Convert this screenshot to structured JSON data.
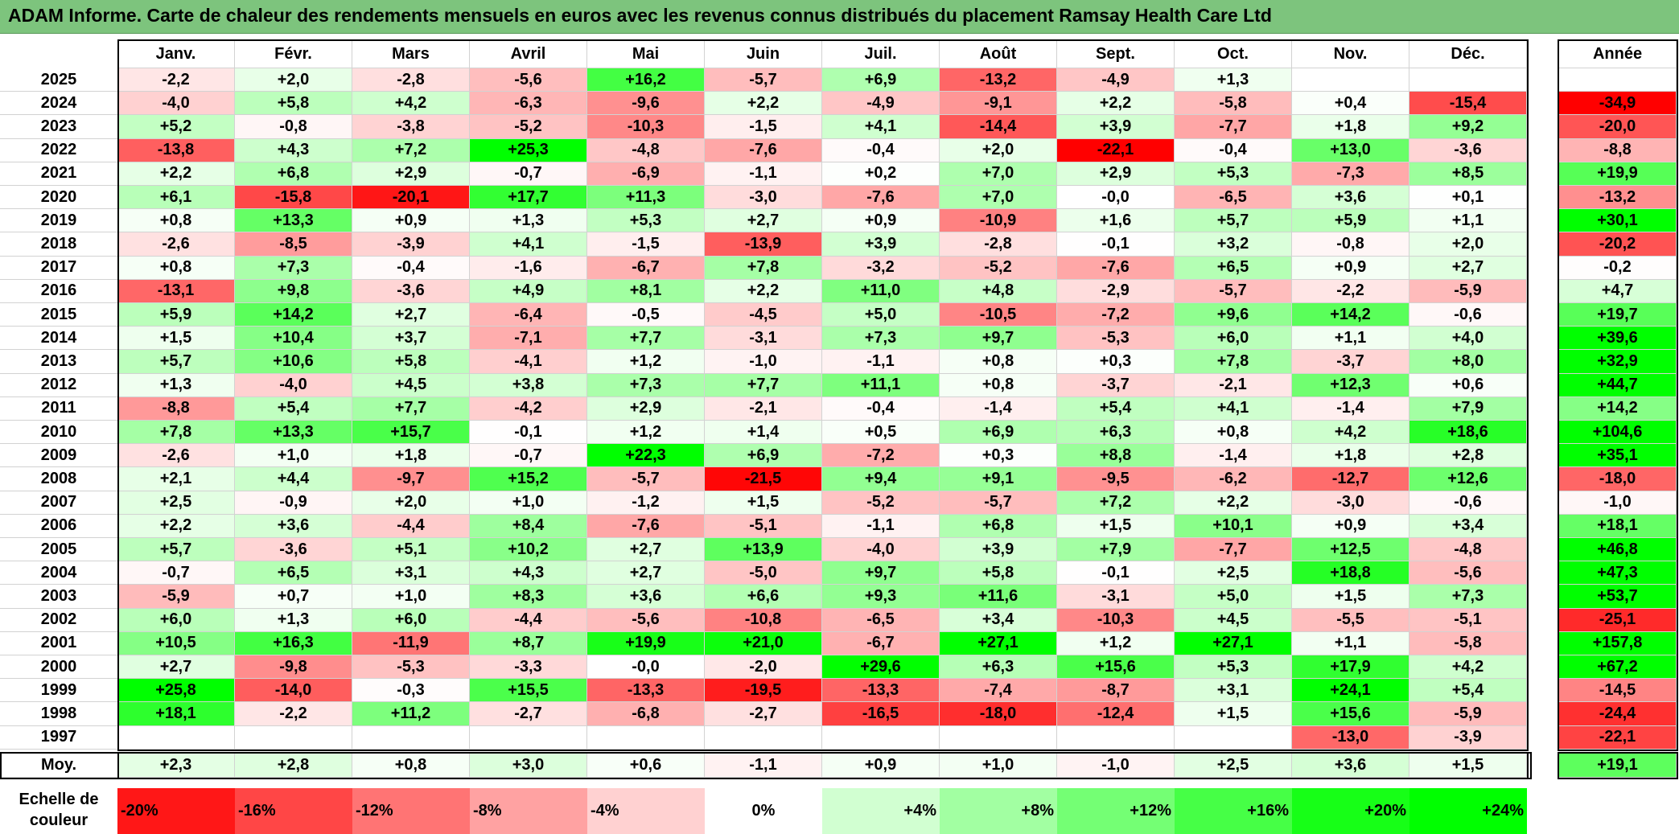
{
  "title": "ADAM Informe. Carte de chaleur des rendements mensuels en euros avec les revenus connus distribués du placement Ramsay Health Care Ltd",
  "colors": {
    "title_bg": "#7dc47d",
    "neg_max": "#ff0000",
    "pos_max": "#00ff00",
    "zero": "#ffffff"
  },
  "chart_data": {
    "type": "heatmap",
    "title": "ADAM Informe. Carte de chaleur des rendements mensuels en euros avec les revenus connus distribués du placement Ramsay Health Care Ltd",
    "months": [
      "Janv.",
      "Févr.",
      "Mars",
      "Avril",
      "Mai",
      "Juin",
      "Juil.",
      "Août",
      "Sept.",
      "Oct.",
      "Nov.",
      "Déc."
    ],
    "year_header": "Année",
    "rows": [
      {
        "year": "2025",
        "values": [
          "-2,2",
          "+2,0",
          "-2,8",
          "-5,6",
          "+16,2",
          "-5,7",
          "+6,9",
          "-13,2",
          "-4,9",
          "+1,3",
          "",
          ""
        ],
        "annual": ""
      },
      {
        "year": "2024",
        "values": [
          "-4,0",
          "+5,8",
          "+4,2",
          "-6,3",
          "-9,6",
          "+2,2",
          "-4,9",
          "-9,1",
          "+2,2",
          "-5,8",
          "+0,4",
          "-15,4"
        ],
        "annual": "-34,9"
      },
      {
        "year": "2023",
        "values": [
          "+5,2",
          "-0,8",
          "-3,8",
          "-5,2",
          "-10,3",
          "-1,5",
          "+4,1",
          "-14,4",
          "+3,9",
          "-7,7",
          "+1,8",
          "+9,2"
        ],
        "annual": "-20,0"
      },
      {
        "year": "2022",
        "values": [
          "-13,8",
          "+4,3",
          "+7,2",
          "+25,3",
          "-4,8",
          "-7,6",
          "-0,4",
          "+2,0",
          "-22,1",
          "-0,4",
          "+13,0",
          "-3,6"
        ],
        "annual": "-8,8"
      },
      {
        "year": "2021",
        "values": [
          "+2,2",
          "+6,8",
          "+2,9",
          "-0,7",
          "-6,9",
          "-1,1",
          "+0,2",
          "+7,0",
          "+2,9",
          "+5,3",
          "-7,3",
          "+8,5"
        ],
        "annual": "+19,9"
      },
      {
        "year": "2020",
        "values": [
          "+6,1",
          "-15,8",
          "-20,1",
          "+17,7",
          "+11,3",
          "-3,0",
          "-7,6",
          "+7,0",
          "-0,0",
          "-6,5",
          "+3,6",
          "+0,1"
        ],
        "annual": "-13,2"
      },
      {
        "year": "2019",
        "values": [
          "+0,8",
          "+13,3",
          "+0,9",
          "+1,3",
          "+5,3",
          "+2,7",
          "+0,9",
          "-10,9",
          "+1,6",
          "+5,7",
          "+5,9",
          "+1,1"
        ],
        "annual": "+30,1"
      },
      {
        "year": "2018",
        "values": [
          "-2,6",
          "-8,5",
          "-3,9",
          "+4,1",
          "-1,5",
          "-13,9",
          "+3,9",
          "-2,8",
          "-0,1",
          "+3,2",
          "-0,8",
          "+2,0"
        ],
        "annual": "-20,2"
      },
      {
        "year": "2017",
        "values": [
          "+0,8",
          "+7,3",
          "-0,4",
          "-1,6",
          "-6,7",
          "+7,8",
          "-3,2",
          "-5,2",
          "-7,6",
          "+6,5",
          "+0,9",
          "+2,7"
        ],
        "annual": "-0,2"
      },
      {
        "year": "2016",
        "values": [
          "-13,1",
          "+9,8",
          "-3,6",
          "+4,9",
          "+8,1",
          "+2,2",
          "+11,0",
          "+4,8",
          "-2,9",
          "-5,7",
          "-2,2",
          "-5,9"
        ],
        "annual": "+4,7"
      },
      {
        "year": "2015",
        "values": [
          "+5,9",
          "+14,2",
          "+2,7",
          "-6,4",
          "-0,5",
          "-4,5",
          "+5,0",
          "-10,5",
          "-7,2",
          "+9,6",
          "+14,2",
          "-0,6"
        ],
        "annual": "+19,7"
      },
      {
        "year": "2014",
        "values": [
          "+1,5",
          "+10,4",
          "+3,7",
          "-7,1",
          "+7,7",
          "-3,1",
          "+7,3",
          "+9,7",
          "-5,3",
          "+6,0",
          "+1,1",
          "+4,0"
        ],
        "annual": "+39,6"
      },
      {
        "year": "2013",
        "values": [
          "+5,7",
          "+10,6",
          "+5,8",
          "-4,1",
          "+1,2",
          "-1,0",
          "-1,1",
          "+0,8",
          "+0,3",
          "+7,8",
          "-3,7",
          "+8,0"
        ],
        "annual": "+32,9"
      },
      {
        "year": "2012",
        "values": [
          "+1,3",
          "-4,0",
          "+4,5",
          "+3,8",
          "+7,3",
          "+7,7",
          "+11,1",
          "+0,8",
          "-3,7",
          "-2,1",
          "+12,3",
          "+0,6"
        ],
        "annual": "+44,7"
      },
      {
        "year": "2011",
        "values": [
          "-8,8",
          "+5,4",
          "+7,7",
          "-4,2",
          "+2,9",
          "-2,1",
          "-0,4",
          "-1,4",
          "+5,4",
          "+4,1",
          "-1,4",
          "+7,9"
        ],
        "annual": "+14,2"
      },
      {
        "year": "2010",
        "values": [
          "+7,8",
          "+13,3",
          "+15,7",
          "-0,1",
          "+1,2",
          "+1,4",
          "+0,5",
          "+6,9",
          "+6,3",
          "+0,8",
          "+4,2",
          "+18,6"
        ],
        "annual": "+104,6"
      },
      {
        "year": "2009",
        "values": [
          "-2,6",
          "+1,0",
          "+1,8",
          "-0,7",
          "+22,3",
          "+6,9",
          "-7,2",
          "+0,3",
          "+8,8",
          "-1,4",
          "+1,8",
          "+2,8"
        ],
        "annual": "+35,1"
      },
      {
        "year": "2008",
        "values": [
          "+2,1",
          "+4,4",
          "-9,7",
          "+15,2",
          "-5,7",
          "-21,5",
          "+9,4",
          "+9,1",
          "-9,5",
          "-6,2",
          "-12,7",
          "+12,6"
        ],
        "annual": "-18,0"
      },
      {
        "year": "2007",
        "values": [
          "+2,5",
          "-0,9",
          "+2,0",
          "+1,0",
          "-1,2",
          "+1,5",
          "-5,2",
          "-5,7",
          "+7,2",
          "+2,2",
          "-3,0",
          "-0,6"
        ],
        "annual": "-1,0"
      },
      {
        "year": "2006",
        "values": [
          "+2,2",
          "+3,6",
          "-4,4",
          "+8,4",
          "-7,6",
          "-5,1",
          "-1,1",
          "+6,8",
          "+1,5",
          "+10,1",
          "+0,9",
          "+3,4"
        ],
        "annual": "+18,1"
      },
      {
        "year": "2005",
        "values": [
          "+5,7",
          "-3,6",
          "+5,1",
          "+10,2",
          "+2,7",
          "+13,9",
          "-4,0",
          "+3,9",
          "+7,9",
          "-7,7",
          "+12,5",
          "-4,8"
        ],
        "annual": "+46,8"
      },
      {
        "year": "2004",
        "values": [
          "-0,7",
          "+6,5",
          "+3,1",
          "+4,3",
          "+2,7",
          "-5,0",
          "+9,7",
          "+5,8",
          "-0,1",
          "+2,5",
          "+18,8",
          "-5,6"
        ],
        "annual": "+47,3"
      },
      {
        "year": "2003",
        "values": [
          "-5,9",
          "+0,7",
          "+1,0",
          "+8,3",
          "+3,6",
          "+6,6",
          "+9,3",
          "+11,6",
          "-3,1",
          "+5,0",
          "+1,5",
          "+7,3"
        ],
        "annual": "+53,7"
      },
      {
        "year": "2002",
        "values": [
          "+6,0",
          "+1,3",
          "+6,0",
          "-4,4",
          "-5,6",
          "-10,8",
          "-6,5",
          "+3,4",
          "-10,3",
          "+4,5",
          "-5,5",
          "-5,1"
        ],
        "annual": "-25,1"
      },
      {
        "year": "2001",
        "values": [
          "+10,5",
          "+16,3",
          "-11,9",
          "+8,7",
          "+19,9",
          "+21,0",
          "-6,7",
          "+27,1",
          "+1,2",
          "+27,1",
          "+1,1",
          "-5,8"
        ],
        "annual": "+157,8"
      },
      {
        "year": "2000",
        "values": [
          "+2,7",
          "-9,8",
          "-5,3",
          "-3,3",
          "-0,0",
          "-2,0",
          "+29,6",
          "+6,3",
          "+15,6",
          "+5,3",
          "+17,9",
          "+4,2"
        ],
        "annual": "+67,2"
      },
      {
        "year": "1999",
        "values": [
          "+25,8",
          "-14,0",
          "-0,3",
          "+15,5",
          "-13,3",
          "-19,5",
          "-13,3",
          "-7,4",
          "-8,7",
          "+3,1",
          "+24,1",
          "+5,4"
        ],
        "annual": "-14,5"
      },
      {
        "year": "1998",
        "values": [
          "+18,1",
          "-2,2",
          "+11,2",
          "-2,7",
          "-6,8",
          "-2,7",
          "-16,5",
          "-18,0",
          "-12,4",
          "+1,5",
          "+15,6",
          "-5,9"
        ],
        "annual": "-24,4"
      },
      {
        "year": "1997",
        "values": [
          "",
          "",
          "",
          "",
          "",
          "",
          "",
          "",
          "",
          "",
          "-13,0",
          "-3,9"
        ],
        "annual": "-22,1"
      }
    ],
    "average": {
      "label": "Moy.",
      "values": [
        "+2,3",
        "+2,8",
        "+0,8",
        "+3,0",
        "+0,6",
        "-1,1",
        "+0,9",
        "+1,0",
        "-1,0",
        "+2,5",
        "+3,6",
        "+1,5"
      ],
      "annual": "+19,1"
    },
    "scale": {
      "label": "Echelle de couleur",
      "steps": [
        "-20%",
        "-16%",
        "-12%",
        "-8%",
        "-4%",
        "0%",
        "+4%",
        "+8%",
        "+12%",
        "+16%",
        "+20%",
        "+24%"
      ]
    }
  }
}
